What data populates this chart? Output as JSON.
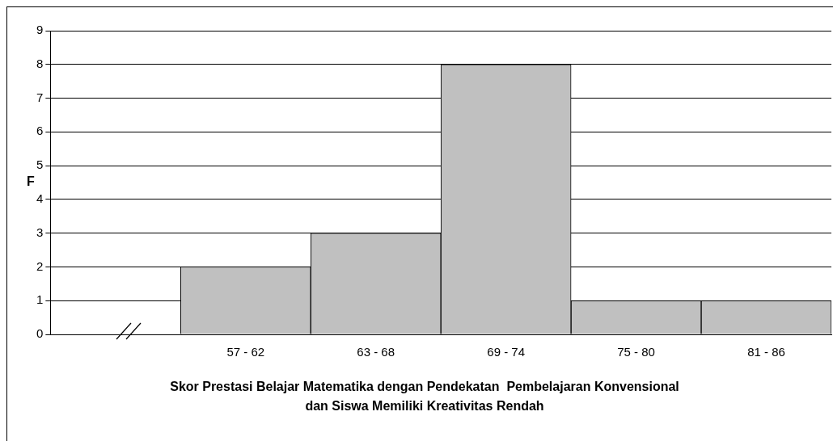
{
  "chart_data": {
    "type": "bar",
    "xlabel": "Skor Prestasi Belajar Matematika dengan Pendekatan  Pembelajaran Konvensional dan Siswa Memiliki Kreativitas Rendah",
    "ylabel": "F",
    "categories": [
      null,
      "57 - 62",
      "63 - 68",
      "69 - 74",
      "75 - 80",
      "81 - 86"
    ],
    "values": [
      null,
      2,
      3,
      8,
      1,
      1
    ],
    "color": "#c0c0c0",
    "ylim": [
      0,
      9
    ],
    "yticks": [
      0,
      1,
      2,
      3,
      4,
      5,
      6,
      7,
      8,
      9
    ],
    "grid": "y",
    "legend": false
  }
}
